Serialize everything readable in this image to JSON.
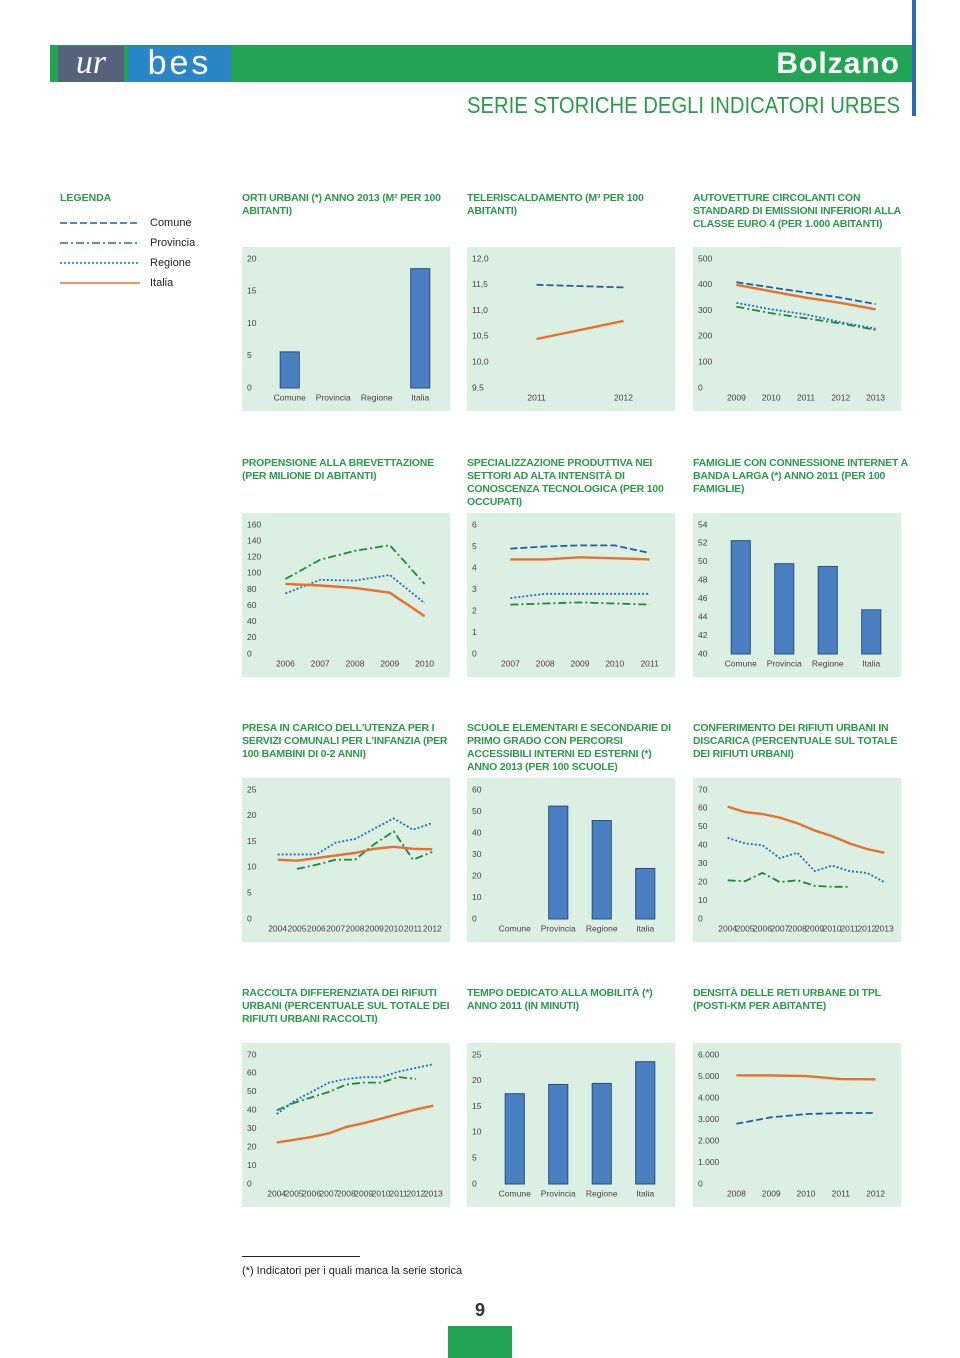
{
  "header": {
    "logo_left": "ur",
    "logo_right": "bes",
    "city": "Bolzano",
    "title": "SERIE STORICHE DEGLI INDICATORI URBES"
  },
  "legend": {
    "title": "LEGENDA",
    "items": [
      {
        "name": "Comune",
        "color": "#1f5fa8",
        "dash": "dashed"
      },
      {
        "name": "Provincia",
        "color": "#1a8a3a",
        "dash": "dashdot"
      },
      {
        "name": "Regione",
        "color": "#1f6fb8",
        "dash": "dotted"
      },
      {
        "name": "Italia",
        "color": "#e8702a",
        "dash": "solid"
      }
    ]
  },
  "chart_data": [
    {
      "type": "bar",
      "title": "ORTI URBANI (*) ANNO 2013 (M² PER 100 ABITANTI)",
      "categories": [
        "Comune",
        "Provincia",
        "Regione",
        "Italia"
      ],
      "values": [
        5.6,
        null,
        null,
        18.5
      ],
      "color": "#4a7fc1",
      "ylim": [
        0,
        20
      ],
      "yticks": [
        0,
        5,
        10,
        15,
        20
      ]
    },
    {
      "type": "line",
      "title": "TELERISCALDAMENTO (M³ PER 100 ABITANTI)",
      "categories": [
        "2011",
        "2012"
      ],
      "ylim": [
        9.5,
        12.0
      ],
      "yticks": [
        {
          "value": 9.5,
          "label": "9,5"
        },
        {
          "value": 10.0,
          "label": "10,0"
        },
        {
          "value": 10.5,
          "label": "10,5"
        },
        {
          "value": 11.0,
          "label": "11,0"
        },
        {
          "value": 11.5,
          "label": "11,5"
        },
        {
          "value": 12.0,
          "label": "12,0"
        }
      ],
      "series": [
        {
          "name": "Comune",
          "values": [
            11.5,
            11.45
          ]
        },
        {
          "name": "Italia",
          "values": [
            10.45,
            10.8
          ]
        }
      ]
    },
    {
      "type": "line",
      "title": "AUTOVETTURE CIRCOLANTI CON STANDARD DI EMISSIONI INFERIORI ALLA CLASSE EURO 4 (PER 1.000 ABITANTI)",
      "categories": [
        "2009",
        "2010",
        "2011",
        "2012",
        "2013"
      ],
      "ylim": [
        0,
        500
      ],
      "yticks": [
        0,
        100,
        200,
        300,
        400,
        500
      ],
      "series": [
        {
          "name": "Comune",
          "values": [
            410,
            390,
            370,
            350,
            325
          ]
        },
        {
          "name": "Provincia",
          "values": [
            315,
            290,
            270,
            250,
            225
          ]
        },
        {
          "name": "Regione",
          "values": [
            330,
            305,
            285,
            255,
            230
          ]
        },
        {
          "name": "Italia",
          "values": [
            400,
            375,
            350,
            330,
            305
          ]
        }
      ]
    },
    {
      "type": "line",
      "title": "PROPENSIONE ALLA BREVETTAZIONE (PER MILIONE DI ABITANTI)",
      "categories": [
        "2006",
        "2007",
        "2008",
        "2009",
        "2010"
      ],
      "ylim": [
        0,
        160
      ],
      "yticks": [
        0,
        20,
        40,
        60,
        80,
        100,
        120,
        140,
        160
      ],
      "series": [
        {
          "name": "Provincia",
          "values": [
            93,
            117,
            128,
            135,
            87
          ]
        },
        {
          "name": "Regione",
          "values": [
            75,
            92,
            91,
            98,
            63
          ]
        },
        {
          "name": "Italia",
          "values": [
            87,
            85,
            82,
            76,
            47
          ]
        }
      ]
    },
    {
      "type": "line",
      "title": "SPECIALIZZAZIONE PRODUTTIVA NEI SETTORI AD ALTA INTENSITÀ DI CONOSCENZA TECNOLOGICA (PER 100 OCCUPATI)",
      "categories": [
        "2007",
        "2008",
        "2009",
        "2010",
        "2011"
      ],
      "ylim": [
        0,
        6
      ],
      "yticks": [
        0,
        1,
        2,
        3,
        4,
        5,
        6
      ],
      "series": [
        {
          "name": "Comune",
          "values": [
            4.9,
            5.0,
            5.05,
            5.05,
            4.7
          ]
        },
        {
          "name": "Provincia",
          "values": [
            2.3,
            2.35,
            2.4,
            2.35,
            2.3
          ]
        },
        {
          "name": "Regione",
          "values": [
            2.6,
            2.8,
            2.8,
            2.8,
            2.8
          ]
        },
        {
          "name": "Italia",
          "values": [
            4.4,
            4.4,
            4.5,
            4.45,
            4.4
          ]
        }
      ]
    },
    {
      "type": "bar",
      "title": "FAMIGLIE CON CONNESSIONE INTERNET A BANDA LARGA  (*) ANNO 2011 (PER 100 FAMIGLIE)",
      "categories": [
        "Comune",
        "Provincia",
        "Regione",
        "Italia"
      ],
      "values": [
        52.3,
        49.8,
        49.5,
        44.8
      ],
      "color": "#4a7fc1",
      "ylim": [
        40,
        54
      ],
      "yticks": [
        40,
        42,
        44,
        46,
        48,
        50,
        52,
        54
      ]
    },
    {
      "type": "line",
      "title": "PRESA IN CARICO DELL'UTENZA PER I SERVIZI COMUNALI PER L'INFANZIA (PER 100 BAMBINI DI 0-2 ANNI)",
      "categories": [
        "2004",
        "2005",
        "2006",
        "2007",
        "2008",
        "2009",
        "2010",
        "2011",
        "2012"
      ],
      "ylim": [
        0,
        25
      ],
      "yticks": [
        0,
        5,
        10,
        15,
        20,
        25
      ],
      "series": [
        {
          "name": "Provincia",
          "values": [
            null,
            9.7,
            10.5,
            11.5,
            11.5,
            14.5,
            17,
            11.5,
            13
          ]
        },
        {
          "name": "Regione",
          "values": [
            12.5,
            12.5,
            12.5,
            14.8,
            15.5,
            17.5,
            19.5,
            17.3,
            18.6
          ]
        },
        {
          "name": "Italia",
          "values": [
            11.5,
            11.3,
            11.8,
            12.3,
            12.8,
            13.6,
            14,
            13.6,
            13.5
          ]
        }
      ]
    },
    {
      "type": "bar",
      "title": "SCUOLE ELEMENTARI E SECONDARIE DI PRIMO GRADO CON PERCORSI ACCESSIBILI INTERNI ED ESTERNI (*) ANNO 2013 (PER 100 SCUOLE)",
      "categories": [
        "Comune",
        "Provincia",
        "Regione",
        "Italia"
      ],
      "values": [
        null,
        52.5,
        45.8,
        23.5
      ],
      "color": "#4a7fc1",
      "ylim": [
        0,
        60
      ],
      "yticks": [
        0,
        10,
        20,
        30,
        40,
        50,
        60
      ]
    },
    {
      "type": "line",
      "title": "CONFERIMENTO DEI RIFIUTI URBANI IN DISCARICA (PERCENTUALE SUL TOTALE DEI RIFIUTI URBANI)",
      "categories": [
        "2004",
        "2005",
        "2006",
        "2007",
        "2008",
        "2009",
        "2010",
        "2011",
        "2012",
        "2013"
      ],
      "ylim": [
        0,
        70
      ],
      "yticks": [
        0,
        10,
        20,
        30,
        40,
        50,
        60,
        70
      ],
      "series": [
        {
          "name": "Provincia",
          "values": [
            21,
            20.5,
            25,
            20,
            21,
            18,
            17.5,
            17.5,
            null,
            null
          ]
        },
        {
          "name": "Regione",
          "values": [
            44,
            41,
            40,
            33,
            36,
            26,
            29,
            26,
            25,
            20
          ]
        },
        {
          "name": "Italia",
          "values": [
            61,
            58,
            57,
            55,
            52,
            48,
            45,
            41,
            38,
            36
          ]
        }
      ]
    },
    {
      "type": "line",
      "title": "RACCOLTA DIFFERENZIATA DEI RIFIUTI URBANI (PERCENTUALE SUL TOTALE DEI RIFIUTI URBANI RACCOLTI)",
      "categories": [
        "2004",
        "2005",
        "2006",
        "2007",
        "2008",
        "2009",
        "2010",
        "2011",
        "2012",
        "2013"
      ],
      "ylim": [
        0,
        70
      ],
      "yticks": [
        0,
        10,
        20,
        30,
        40,
        50,
        60,
        70
      ],
      "series": [
        {
          "name": "Provincia",
          "values": [
            40,
            44,
            47,
            50,
            54,
            55,
            55,
            58,
            57,
            null
          ]
        },
        {
          "name": "Regione",
          "values": [
            38,
            45,
            50,
            55,
            57,
            58,
            58,
            61,
            63,
            65
          ]
        },
        {
          "name": "Italia",
          "values": [
            22.5,
            24,
            25.5,
            27.5,
            31,
            33,
            35.5,
            38,
            40.5,
            42.5
          ]
        }
      ]
    },
    {
      "type": "bar",
      "title": "TEMPO DEDICATO ALLA MOBILITÀ (*) ANNO 2011 (IN MINUTI)",
      "categories": [
        "Comune",
        "Provincia",
        "Regione",
        "Italia"
      ],
      "values": [
        17.5,
        19.3,
        19.5,
        23.7
      ],
      "color": "#4a7fc1",
      "ylim": [
        0,
        25
      ],
      "yticks": [
        0,
        5,
        10,
        15,
        20,
        25
      ]
    },
    {
      "type": "line",
      "title": "DENSITÀ DELLE RETI URBANE DI TPL (POSTI-KM PER ABITANTE)",
      "categories": [
        "2008",
        "2009",
        "2010",
        "2011",
        "2012"
      ],
      "ylim": [
        0,
        6000
      ],
      "yticks": [
        0,
        {
          "value": 1000,
          "label": "1.000"
        },
        {
          "value": 2000,
          "label": "2.000"
        },
        {
          "value": 3000,
          "label": "3.000"
        },
        {
          "value": 4000,
          "label": "4.000"
        },
        {
          "value": 5000,
          "label": "5.000"
        },
        {
          "value": 6000,
          "label": "6.000"
        }
      ],
      "series": [
        {
          "name": "Comune",
          "values": [
            2800,
            3100,
            3250,
            3300,
            3300
          ]
        },
        {
          "name": "Italia",
          "values": [
            5050,
            5050,
            5020,
            4880,
            4870
          ]
        }
      ]
    }
  ],
  "footnote": "(*) Indicatori per i quali manca la serie storica",
  "page_number": 9
}
